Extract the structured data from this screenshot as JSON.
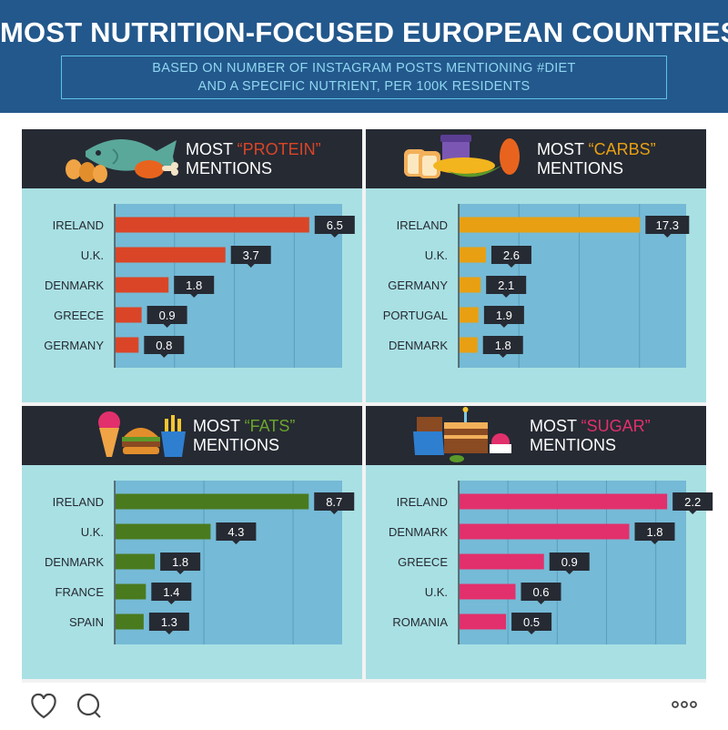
{
  "header": {
    "title": "MOST NUTRITION-FOCUSED EUROPEAN COUNTRIES",
    "subtitle_line1": "BASED ON NUMBER OF INSTAGRAM POSTS MENTIONING #DIET",
    "subtitle_line2": "AND A SPECIFIC NUTRIENT, PER 100K RESIDENTS"
  },
  "colors": {
    "protein": "#da4527",
    "carbs": "#e8a012",
    "fats": "#4a7a1e",
    "sugar": "#e2306c",
    "header_bg": "#23588c",
    "panel_head": "#262a33",
    "plot_bg": "#75bad6",
    "panel_bg": "#a9e0e3",
    "label_box": "#262a33"
  },
  "footer": {
    "icons": [
      "heart-icon",
      "comment-icon",
      "more-options-icon"
    ]
  },
  "chart_data": [
    {
      "type": "bar",
      "orientation": "horizontal",
      "title_prefix": "MOST ",
      "title_highlight": "“PROTEIN”",
      "title_suffix": "MENTIONS",
      "highlight_color": "#da4527",
      "bar_color": "#da4527",
      "icon": "protein-food-icon",
      "categories": [
        "IRELAND",
        "U.K.",
        "DENMARK",
        "GREECE",
        "GERMANY"
      ],
      "values": [
        6.5,
        3.7,
        1.8,
        0.9,
        0.8
      ],
      "labels": [
        "6.5",
        "3.7",
        "1.8",
        "0.9",
        "0.8"
      ],
      "xlim": [
        0,
        7.6
      ],
      "grid_step": 2
    },
    {
      "type": "bar",
      "orientation": "horizontal",
      "title_prefix": "MOST ",
      "title_highlight": "“CARBS”",
      "title_suffix": "MENTIONS",
      "highlight_color": "#e8a012",
      "bar_color": "#e8a012",
      "icon": "carbs-food-icon",
      "categories": [
        "IRELAND",
        "U.K.",
        "GERMANY",
        "PORTUGAL",
        "DENMARK"
      ],
      "values": [
        17.3,
        2.6,
        2.1,
        1.9,
        1.8
      ],
      "labels": [
        "17.3",
        "2.6",
        "2.1",
        "1.9",
        "1.8"
      ],
      "xlim": [
        0,
        21.7
      ],
      "grid_step": 5.75
    },
    {
      "type": "bar",
      "orientation": "horizontal",
      "title_prefix": "MOST ",
      "title_highlight": "“FATS”",
      "title_suffix": "MENTIONS",
      "highlight_color": "#4a7a1e",
      "bar_color": "#4a7a1e",
      "icon": "fats-food-icon",
      "categories": [
        "IRELAND",
        "U.K.",
        "DENMARK",
        "FRANCE",
        "SPAIN"
      ],
      "values": [
        8.7,
        4.3,
        1.8,
        1.4,
        1.3
      ],
      "labels": [
        "8.7",
        "4.3",
        "1.8",
        "1.4",
        "1.3"
      ],
      "xlim": [
        0,
        10.2
      ],
      "grid_step": 4
    },
    {
      "type": "bar",
      "orientation": "horizontal",
      "title_prefix": "MOST ",
      "title_highlight": "“SUGAR”",
      "title_suffix": "MENTIONS",
      "highlight_color": "#e2306c",
      "bar_color": "#e2306c",
      "icon": "sugar-food-icon",
      "categories": [
        "IRELAND",
        "DENMARK",
        "GREECE",
        "U.K.",
        "ROMANIA"
      ],
      "values": [
        2.2,
        1.8,
        0.9,
        0.6,
        0.5
      ],
      "labels": [
        "2.2",
        "1.8",
        "0.9",
        "0.6",
        "0.5"
      ],
      "xlim": [
        0,
        2.4
      ],
      "grid_step": 0.52
    }
  ]
}
